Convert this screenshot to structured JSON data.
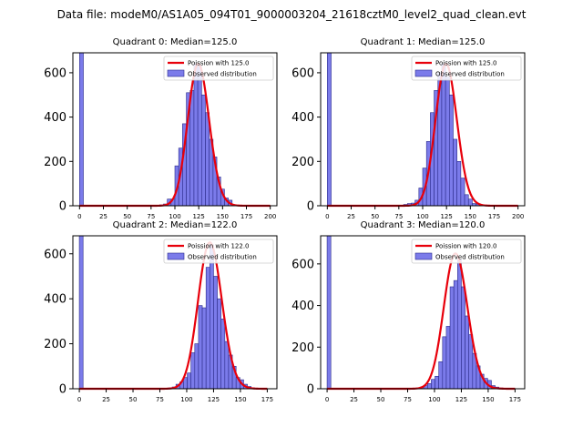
{
  "figure": {
    "suptitle": "Data file: modeM0/AS1A05_094T01_9000003204_21618cztM0_level2_quad_clean.evt",
    "colors": {
      "bar_fill": "#7b7bea",
      "bar_edge": "#2b2b8a",
      "line": "#e8000b",
      "axes": "#000000"
    }
  },
  "chart_data": [
    {
      "type": "bar",
      "title": "Quadrant 0: Median=125.0",
      "legend": {
        "location": "top-right",
        "line_label": "Poission with 125.0",
        "bar_label": "Observed distribution"
      },
      "xlim": [
        -7,
        207
      ],
      "ylim": [
        0,
        690
      ],
      "xticks": [
        0,
        25,
        50,
        75,
        100,
        125,
        150,
        175,
        200
      ],
      "yticks": [
        0,
        200,
        400,
        600
      ],
      "bin_width": 4,
      "bins": [
        {
          "x": 0,
          "y": 690
        },
        {
          "x": 80,
          "y": 2
        },
        {
          "x": 84,
          "y": 4
        },
        {
          "x": 88,
          "y": 8
        },
        {
          "x": 92,
          "y": 30
        },
        {
          "x": 96,
          "y": 30
        },
        {
          "x": 100,
          "y": 180
        },
        {
          "x": 104,
          "y": 260
        },
        {
          "x": 108,
          "y": 370
        },
        {
          "x": 112,
          "y": 510
        },
        {
          "x": 116,
          "y": 520
        },
        {
          "x": 120,
          "y": 640
        },
        {
          "x": 124,
          "y": 630
        },
        {
          "x": 128,
          "y": 500
        },
        {
          "x": 132,
          "y": 420
        },
        {
          "x": 136,
          "y": 300
        },
        {
          "x": 140,
          "y": 220
        },
        {
          "x": 144,
          "y": 130
        },
        {
          "x": 148,
          "y": 75
        },
        {
          "x": 152,
          "y": 35
        },
        {
          "x": 156,
          "y": 25
        },
        {
          "x": 160,
          "y": 5
        }
      ],
      "poisson": {
        "mean": 125.0,
        "peak": 640,
        "x_start": 0,
        "x_end": 200
      }
    },
    {
      "type": "bar",
      "title": "Quadrant 1: Median=125.0",
      "legend": {
        "location": "top-right",
        "line_label": "Poission with 125.0",
        "bar_label": "Observed distribution"
      },
      "xlim": [
        -7,
        207
      ],
      "ylim": [
        0,
        690
      ],
      "xticks": [
        0,
        25,
        50,
        75,
        100,
        125,
        150,
        175,
        200
      ],
      "yticks": [
        0,
        200,
        400,
        600
      ],
      "bin_width": 4,
      "bins": [
        {
          "x": 0,
          "y": 690
        },
        {
          "x": 76,
          "y": 2
        },
        {
          "x": 80,
          "y": 6
        },
        {
          "x": 84,
          "y": 10
        },
        {
          "x": 88,
          "y": 12
        },
        {
          "x": 92,
          "y": 25
        },
        {
          "x": 96,
          "y": 80
        },
        {
          "x": 100,
          "y": 170
        },
        {
          "x": 104,
          "y": 290
        },
        {
          "x": 108,
          "y": 420
        },
        {
          "x": 112,
          "y": 520
        },
        {
          "x": 116,
          "y": 600
        },
        {
          "x": 120,
          "y": 640
        },
        {
          "x": 124,
          "y": 580
        },
        {
          "x": 128,
          "y": 500
        },
        {
          "x": 132,
          "y": 300
        },
        {
          "x": 136,
          "y": 200
        },
        {
          "x": 140,
          "y": 125
        },
        {
          "x": 144,
          "y": 50
        },
        {
          "x": 148,
          "y": 30
        },
        {
          "x": 152,
          "y": 10
        },
        {
          "x": 156,
          "y": 8
        },
        {
          "x": 160,
          "y": 4
        },
        {
          "x": 164,
          "y": 2
        }
      ],
      "poisson": {
        "mean": 125.0,
        "peak": 640,
        "x_start": 0,
        "x_end": 200
      }
    },
    {
      "type": "bar",
      "title": "Quadrant 2: Median=122.0",
      "legend": {
        "location": "top-right",
        "line_label": "Poission with 122.0",
        "bar_label": "Observed distribution"
      },
      "xlim": [
        -6,
        184
      ],
      "ylim": [
        0,
        680
      ],
      "xticks": [
        0,
        25,
        50,
        75,
        100,
        125,
        150,
        175
      ],
      "yticks": [
        0,
        200,
        400,
        600
      ],
      "bin_width": 3.5,
      "bins": [
        {
          "x": 0,
          "y": 680
        },
        {
          "x": 76,
          "y": 2
        },
        {
          "x": 83,
          "y": 4
        },
        {
          "x": 86.5,
          "y": 8
        },
        {
          "x": 90,
          "y": 20
        },
        {
          "x": 93.5,
          "y": 30
        },
        {
          "x": 97,
          "y": 50
        },
        {
          "x": 100.5,
          "y": 70
        },
        {
          "x": 104,
          "y": 160
        },
        {
          "x": 107.5,
          "y": 200
        },
        {
          "x": 111,
          "y": 370
        },
        {
          "x": 114.5,
          "y": 360
        },
        {
          "x": 118,
          "y": 540
        },
        {
          "x": 121.5,
          "y": 640
        },
        {
          "x": 125,
          "y": 500
        },
        {
          "x": 128.5,
          "y": 400
        },
        {
          "x": 132,
          "y": 310
        },
        {
          "x": 135.5,
          "y": 210
        },
        {
          "x": 139,
          "y": 150
        },
        {
          "x": 142.5,
          "y": 100
        },
        {
          "x": 146,
          "y": 50
        },
        {
          "x": 149.5,
          "y": 40
        },
        {
          "x": 153,
          "y": 20
        },
        {
          "x": 156.5,
          "y": 10
        },
        {
          "x": 160,
          "y": 4
        }
      ],
      "poisson": {
        "mean": 122.0,
        "peak": 650,
        "x_start": 0,
        "x_end": 175
      }
    },
    {
      "type": "bar",
      "title": "Quadrant 3: Median=120.0",
      "legend": {
        "location": "top-right",
        "line_label": "Poission with 120.0",
        "bar_label": "Observed distribution"
      },
      "xlim": [
        -6,
        184
      ],
      "ylim": [
        0,
        735
      ],
      "xticks": [
        0,
        25,
        50,
        75,
        100,
        125,
        150,
        175
      ],
      "yticks": [
        0,
        200,
        400,
        600
      ],
      "bin_width": 3.5,
      "bins": [
        {
          "x": 0,
          "y": 735
        },
        {
          "x": 83,
          "y": 4
        },
        {
          "x": 86.5,
          "y": 8
        },
        {
          "x": 90,
          "y": 15
        },
        {
          "x": 93.5,
          "y": 25
        },
        {
          "x": 97,
          "y": 45
        },
        {
          "x": 100.5,
          "y": 60
        },
        {
          "x": 104,
          "y": 130
        },
        {
          "x": 107.5,
          "y": 250
        },
        {
          "x": 111,
          "y": 300
        },
        {
          "x": 114.5,
          "y": 490
        },
        {
          "x": 118,
          "y": 520
        },
        {
          "x": 121.5,
          "y": 620
        },
        {
          "x": 125,
          "y": 490
        },
        {
          "x": 128.5,
          "y": 350
        },
        {
          "x": 132,
          "y": 260
        },
        {
          "x": 135.5,
          "y": 170
        },
        {
          "x": 139,
          "y": 110
        },
        {
          "x": 142.5,
          "y": 70
        },
        {
          "x": 146,
          "y": 50
        },
        {
          "x": 149.5,
          "y": 40
        },
        {
          "x": 153,
          "y": 15
        },
        {
          "x": 156.5,
          "y": 8
        },
        {
          "x": 160,
          "y": 4
        }
      ],
      "poisson": {
        "mean": 120.0,
        "peak": 650,
        "x_start": 0,
        "x_end": 175
      }
    }
  ]
}
